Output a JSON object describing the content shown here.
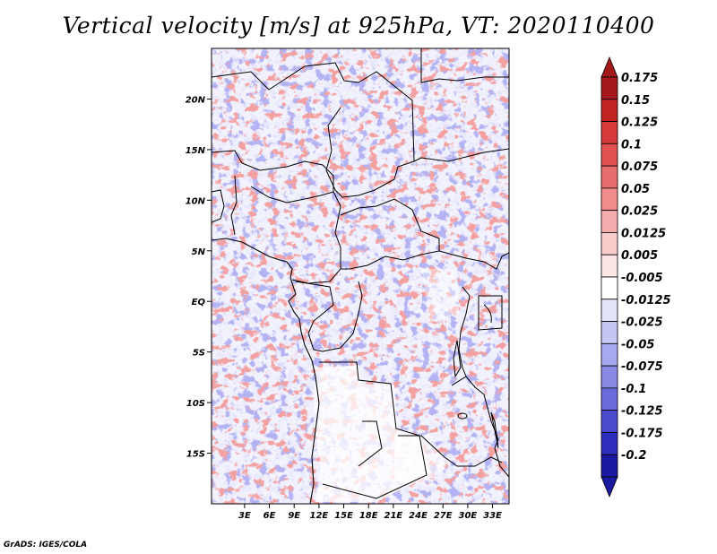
{
  "title": "Vertical velocity [m/s] at 925hPa, VT: 2020110400",
  "credit": "GrADS: IGES/COLA",
  "map": {
    "lon_range": [
      -1,
      35
    ],
    "lat_range": [
      -20,
      25
    ],
    "x_ticks": [
      {
        "lon": 3,
        "label": "3E"
      },
      {
        "lon": 6,
        "label": "6E"
      },
      {
        "lon": 9,
        "label": "9E"
      },
      {
        "lon": 12,
        "label": "12E"
      },
      {
        "lon": 15,
        "label": "15E"
      },
      {
        "lon": 18,
        "label": "18E"
      },
      {
        "lon": 21,
        "label": "21E"
      },
      {
        "lon": 24,
        "label": "24E"
      },
      {
        "lon": 27,
        "label": "27E"
      },
      {
        "lon": 30,
        "label": "30E"
      },
      {
        "lon": 33,
        "label": "33E"
      }
    ],
    "y_ticks": [
      {
        "lat": 20,
        "label": "20N"
      },
      {
        "lat": 15,
        "label": "15N"
      },
      {
        "lat": 10,
        "label": "10N"
      },
      {
        "lat": 5,
        "label": "5N"
      },
      {
        "lat": 0,
        "label": "EQ"
      },
      {
        "lat": -5,
        "label": "5S"
      },
      {
        "lat": -10,
        "label": "10S"
      },
      {
        "lat": -15,
        "label": "15S"
      }
    ]
  },
  "colorbar": {
    "levels": [
      {
        "label": "0.175",
        "color": "#a41a1a"
      },
      {
        "label": "0.15",
        "color": "#c22424"
      },
      {
        "label": "0.125",
        "color": "#d63a3a"
      },
      {
        "label": "0.1",
        "color": "#e05252"
      },
      {
        "label": "0.075",
        "color": "#e86e6e"
      },
      {
        "label": "0.05",
        "color": "#ef8c8c"
      },
      {
        "label": "0.025",
        "color": "#f5acac"
      },
      {
        "label": "0.0125",
        "color": "#f9cccc"
      },
      {
        "label": "0.005",
        "color": "#fce6e6"
      },
      {
        "label": "-0.005",
        "color": "#ffffff"
      },
      {
        "label": "-0.0125",
        "color": "#e2e2fa"
      },
      {
        "label": "-0.025",
        "color": "#c6c6f4"
      },
      {
        "label": "-0.05",
        "color": "#a8a8ee"
      },
      {
        "label": "-0.075",
        "color": "#8a8ae6"
      },
      {
        "label": "-0.1",
        "color": "#6a6adc"
      },
      {
        "label": "-0.125",
        "color": "#4a4ace"
      },
      {
        "label": "-0.175",
        "color": "#2e2ebc"
      },
      {
        "label": "-0.2",
        "color": "#1a1aa0"
      }
    ],
    "top_cap_color": "#a41a1a",
    "bottom_cap_color": "#1a1aa0"
  }
}
